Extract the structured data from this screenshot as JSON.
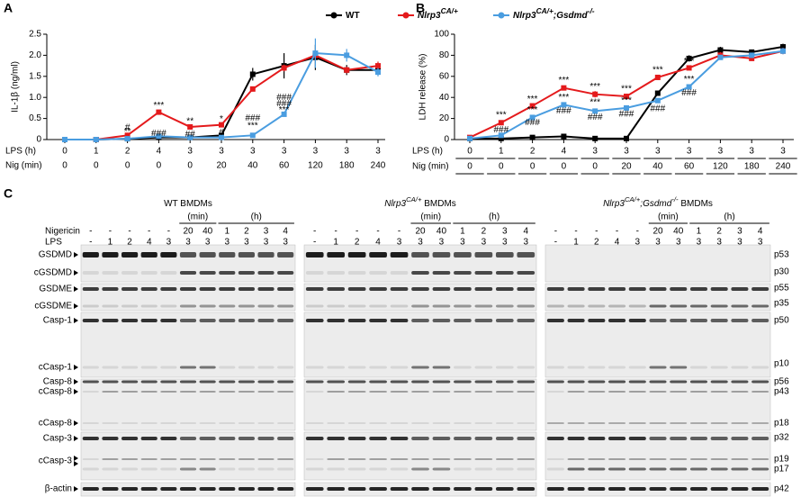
{
  "chart_data": [
    {
      "type": "line",
      "label": "A",
      "ylabel": "IL-1β (ng/ml)",
      "categories": [
        0,
        1,
        2,
        3,
        4,
        5,
        6,
        7,
        8,
        9,
        10
      ],
      "x_label_rows": [
        {
          "label": "LPS (h)",
          "values": [
            "0",
            "1",
            "2",
            "4",
            "3",
            "3",
            "3",
            "3",
            "3",
            "3",
            "3"
          ]
        },
        {
          "label": "Nig (min)",
          "values": [
            "0",
            "0",
            "0",
            "0",
            "0",
            "20",
            "40",
            "60",
            "120",
            "180",
            "240"
          ]
        }
      ],
      "ylim": [
        0,
        2.5
      ],
      "yticks": [
        0,
        0.5,
        {
          "value": 1,
          "label": "1.0"
        },
        1.5,
        {
          "value": 2,
          "label": "2.0"
        },
        2.5
      ],
      "series": [
        {
          "name": [
            {
              "text": "WT"
            }
          ],
          "color": "#000000",
          "values": [
            0,
            0,
            0.02,
            0.05,
            0.05,
            0.1,
            1.55,
            1.75,
            1.95,
            1.65,
            1.65
          ],
          "errors": [
            0,
            0,
            0,
            0,
            0,
            0,
            0.15,
            0.3,
            0.3,
            0.12,
            0.1
          ]
        },
        {
          "name": [
            {
              "text": "Nlrp3"
            },
            {
              "text": "CA/+",
              "sup": true
            }
          ],
          "color": "#e41a1c",
          "values": [
            0,
            0,
            0.1,
            0.65,
            0.3,
            0.35,
            1.2,
            1.7,
            2.0,
            1.65,
            1.75
          ],
          "errors": [
            0,
            0,
            0,
            0.05,
            0.03,
            0.05,
            0.06,
            0.08,
            0.12,
            0.08,
            0.1
          ]
        },
        {
          "name": [
            {
              "text": "Nlrp3"
            },
            {
              "text": "CA/+",
              "sup": true
            },
            {
              "text": ";Gsdmd"
            },
            {
              "text": "-/-",
              "sup": true
            }
          ],
          "color": "#4a9de0",
          "values": [
            0,
            0,
            0.02,
            0.08,
            0.05,
            0.05,
            0.1,
            0.6,
            2.05,
            2.0,
            1.6
          ],
          "errors": [
            0,
            0,
            0,
            0,
            0,
            0,
            0,
            0.04,
            0.35,
            0.15,
            0.1
          ]
        }
      ],
      "annotations": [
        {
          "index": 2,
          "text": "#",
          "y": 0.28
        },
        {
          "index": 2,
          "text": "**",
          "y": 0.18
        },
        {
          "index": 3,
          "text": "***",
          "y": 0.8
        },
        {
          "index": 3,
          "text": "###",
          "y": 0.14
        },
        {
          "index": 4,
          "text": "**",
          "y": 0.43
        },
        {
          "index": 4,
          "text": "##",
          "y": 0.12
        },
        {
          "index": 5,
          "text": "*",
          "y": 0.48
        },
        {
          "index": 5,
          "text": "#",
          "y": 0.16
        },
        {
          "index": 6,
          "text": "###",
          "y": 0.5
        },
        {
          "index": 6,
          "text": "***",
          "y": 0.32
        },
        {
          "index": 7,
          "text": "###",
          "y": 1.0
        },
        {
          "index": 7,
          "text": "###",
          "y": 0.85
        },
        {
          "index": 7,
          "text": "***",
          "y": 0.7
        }
      ]
    },
    {
      "type": "line",
      "label": "B",
      "ylabel": "LDH release (%)",
      "categories": [
        0,
        1,
        2,
        3,
        4,
        5,
        6,
        7,
        8,
        9,
        10
      ],
      "x_label_rows": [
        {
          "label": "LPS (h)",
          "values": [
            "0",
            "1",
            "2",
            "4",
            "3",
            "3",
            "3",
            "3",
            "3",
            "3",
            "3"
          ]
        },
        {
          "label": "Nig (min)",
          "values": [
            "0",
            "0",
            "0",
            "0",
            "0",
            "20",
            "40",
            "60",
            "120",
            "180",
            "240"
          ]
        }
      ],
      "ylim": [
        0,
        100
      ],
      "yticks": [
        0,
        20,
        40,
        60,
        80,
        100
      ],
      "series": [
        {
          "name": [
            {
              "text": "WT"
            }
          ],
          "color": "#000000",
          "values": [
            1,
            1,
            2,
            3,
            1,
            1,
            44,
            77,
            85,
            83,
            88
          ],
          "errors": [
            0,
            0,
            0,
            0,
            0,
            0,
            2,
            3,
            3,
            2,
            3
          ]
        },
        {
          "name": [
            {
              "text": "Nlrp3"
            },
            {
              "text": "CA/+",
              "sup": true
            }
          ],
          "color": "#e41a1c",
          "values": [
            2,
            16,
            32,
            49,
            43,
            41,
            59,
            68,
            80,
            77,
            84
          ],
          "errors": [
            0,
            1,
            1,
            2,
            3,
            2,
            2,
            2,
            3,
            2,
            3
          ]
        },
        {
          "name": [
            {
              "text": "Nlrp3"
            },
            {
              "text": "CA/+",
              "sup": true
            },
            {
              "text": ";Gsdmd"
            },
            {
              "text": "-/-",
              "sup": true
            }
          ],
          "color": "#4a9de0",
          "values": [
            1,
            4,
            21,
            33,
            27,
            30,
            37,
            50,
            78,
            80,
            84
          ],
          "errors": [
            0,
            1,
            2,
            2,
            2,
            2,
            2,
            2,
            2,
            2,
            3
          ]
        }
      ],
      "annotations": [
        {
          "index": 1,
          "text": "***",
          "y": 23
        },
        {
          "index": 1,
          "text": "###",
          "y": 9
        },
        {
          "index": 2,
          "text": "***",
          "y": 38
        },
        {
          "index": 2,
          "text": "***",
          "y": 28
        },
        {
          "index": 2,
          "text": "###",
          "y": 16
        },
        {
          "index": 3,
          "text": "***",
          "y": 56
        },
        {
          "index": 3,
          "text": "***",
          "y": 40
        },
        {
          "index": 3,
          "text": "###",
          "y": 27
        },
        {
          "index": 4,
          "text": "***",
          "y": 50
        },
        {
          "index": 4,
          "text": "***",
          "y": 35
        },
        {
          "index": 4,
          "text": "###",
          "y": 21
        },
        {
          "index": 5,
          "text": "***",
          "y": 48
        },
        {
          "index": 5,
          "text": "***",
          "y": 37
        },
        {
          "index": 5,
          "text": "###",
          "y": 24
        },
        {
          "index": 6,
          "text": "***",
          "y": 66
        },
        {
          "index": 6,
          "text": "###",
          "y": 29
        },
        {
          "index": 7,
          "text": "***",
          "y": 74
        },
        {
          "index": 7,
          "text": "***",
          "y": 57
        },
        {
          "index": 7,
          "text": "###",
          "y": 44
        }
      ]
    }
  ],
  "blot": {
    "label": "C",
    "panels": [
      {
        "title": [
          {
            "text": "WT BMDMs"
          }
        ]
      },
      {
        "title": [
          {
            "text": "Nlrp3",
            "it": true
          },
          {
            "text": "CA/+",
            "sup": true,
            "it": true
          },
          {
            "text": " BMDMs"
          }
        ]
      },
      {
        "title": [
          {
            "text": "Nlrp3",
            "it": true
          },
          {
            "text": "CA/+",
            "sup": true,
            "it": true
          },
          {
            "text": ";Gsdmd",
            "it": true
          },
          {
            "text": "-/-",
            "sup": true,
            "it": true
          },
          {
            "text": " BMDMs"
          }
        ]
      }
    ],
    "group_labels": [
      "(min)",
      "(h)"
    ],
    "nigericin": {
      "label": "Nigericin",
      "values": [
        "-",
        "-",
        "-",
        "-",
        "-",
        "20",
        "40",
        "1",
        "2",
        "3",
        "4"
      ]
    },
    "lps": {
      "label": "LPS",
      "values": [
        "-",
        "1",
        "2",
        "4",
        "3",
        "3",
        "3",
        "3",
        "3",
        "3",
        "3"
      ]
    },
    "left_labels": [
      "GSDMD",
      "cGSDMD",
      "GSDME",
      "cGSDME",
      "Casp-1",
      "cCasp-1",
      "Casp-8",
      "cCasp-8",
      "cCasp-8",
      "Casp-3",
      "cCasp-3",
      "β-actin"
    ],
    "right_labels": [
      "p53",
      "p30",
      "p55",
      "p35",
      "p50",
      "p10",
      "p56",
      "p43",
      "p18",
      "p32",
      "p19",
      "p17",
      "p42"
    ]
  }
}
